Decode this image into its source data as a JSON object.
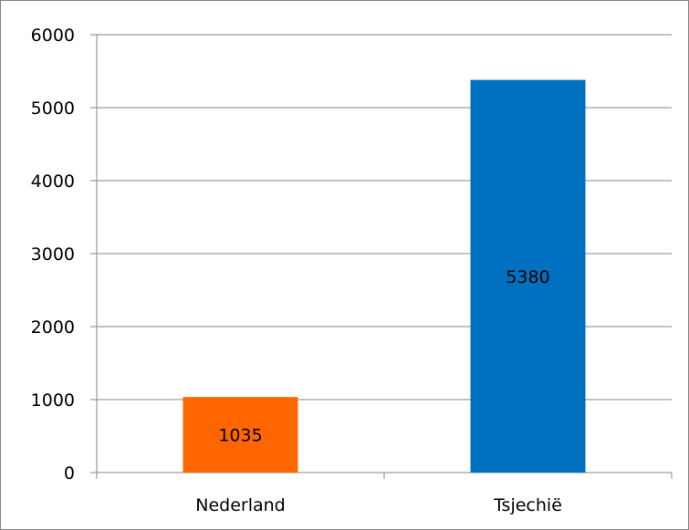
{
  "chart_data": {
    "type": "bar",
    "categories": [
      "Nederland",
      "Tsjechië"
    ],
    "values": [
      1035,
      5380
    ],
    "colors": [
      "#ff6600",
      "#0070c0"
    ],
    "data_labels": [
      "1035",
      "5380"
    ],
    "ylim": [
      0,
      6000
    ],
    "yticks": [
      0,
      1000,
      2000,
      3000,
      4000,
      5000,
      6000
    ],
    "grid": true,
    "legend": "none"
  }
}
